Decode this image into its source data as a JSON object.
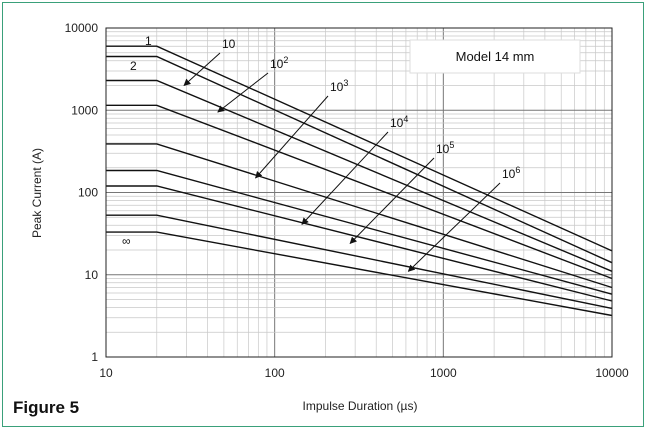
{
  "figure_label": "Figure 5",
  "chart_data": {
    "type": "line",
    "title": "",
    "xlabel": "Impulse Duration (µs)",
    "ylabel": "Peak Current (A)",
    "xscale": "log",
    "yscale": "log",
    "xlim": [
      10,
      10000
    ],
    "ylim": [
      1,
      10000
    ],
    "grid": true,
    "x_ticks": [
      "10",
      "100",
      "1000",
      "10000"
    ],
    "y_ticks": [
      "1",
      "10",
      "100",
      "1000",
      "10000"
    ],
    "legend_box": "Model 14 mm",
    "series": [
      {
        "name": "1",
        "values": [
          [
            10,
            6000
          ],
          [
            20,
            6000
          ],
          [
            10000,
            19.5
          ]
        ]
      },
      {
        "name": "2",
        "values": [
          [
            10,
            4500
          ],
          [
            20,
            4500
          ],
          [
            10000,
            14
          ]
        ]
      },
      {
        "name": "10",
        "values": [
          [
            10,
            2300
          ],
          [
            20,
            2300
          ],
          [
            10000,
            11
          ]
        ]
      },
      {
        "name": "10^2",
        "values": [
          [
            10,
            1150
          ],
          [
            20,
            1150
          ],
          [
            10000,
            9
          ]
        ]
      },
      {
        "name": "10^3",
        "values": [
          [
            10,
            390
          ],
          [
            20,
            390
          ],
          [
            10000,
            7
          ]
        ]
      },
      {
        "name": "10^4",
        "values": [
          [
            10,
            185
          ],
          [
            20,
            185
          ],
          [
            10000,
            5.8
          ]
        ]
      },
      {
        "name": "10^5",
        "values": [
          [
            10,
            120
          ],
          [
            20,
            120
          ],
          [
            10000,
            4.8
          ]
        ]
      },
      {
        "name": "10^6",
        "values": [
          [
            10,
            53
          ],
          [
            20,
            53
          ],
          [
            10000,
            3.9
          ]
        ]
      },
      {
        "name": "∞",
        "values": [
          [
            10,
            33
          ],
          [
            20,
            33
          ],
          [
            10000,
            3.2
          ]
        ]
      }
    ],
    "annotations": [
      {
        "text": "1",
        "sup": "",
        "tip": [
          29,
          4700
        ]
      },
      {
        "text": "2",
        "sup": "",
        "tip": [
          29,
          3500
        ]
      },
      {
        "text": "10",
        "sup": "",
        "tip": [
          29,
          2000
        ]
      },
      {
        "text": "10",
        "sup": "2",
        "tip": [
          46,
          950
        ]
      },
      {
        "text": "10",
        "sup": "3",
        "tip": [
          77,
          150
        ]
      },
      {
        "text": "10",
        "sup": "4",
        "tip": [
          145,
          41
        ]
      },
      {
        "text": "10",
        "sup": "5",
        "tip": [
          280,
          24
        ]
      },
      {
        "text": "10",
        "sup": "6",
        "tip": [
          620,
          11
        ]
      },
      {
        "text": "∞",
        "sup": "",
        "tip": [
          14,
          22
        ]
      }
    ]
  }
}
